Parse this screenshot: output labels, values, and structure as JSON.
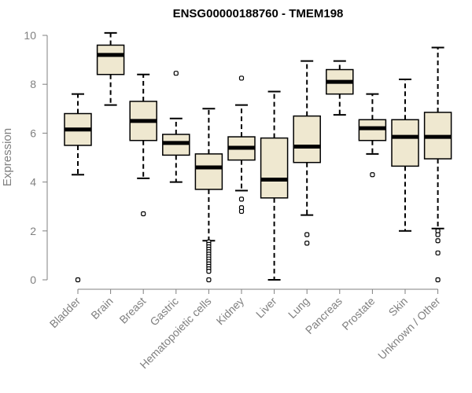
{
  "chart_data": {
    "type": "boxplot",
    "title": "ENSG00000188760 - TMEM198",
    "xlabel": "",
    "ylabel": "Expression",
    "ylim": [
      0,
      10
    ],
    "yticks": [
      0,
      2,
      4,
      6,
      8,
      10
    ],
    "box_fill": "#EFE8D0",
    "box_stroke": "#000000",
    "axis_color": "#808080",
    "categories": [
      "Bladder",
      "Brain",
      "Breast",
      "Gastric",
      "Hematopoietic cells",
      "Kidney",
      "Liver",
      "Lung",
      "Pancreas",
      "Prostate",
      "Skin",
      "Unknown / Other"
    ],
    "boxes": [
      {
        "min": 4.3,
        "q1": 5.5,
        "median": 6.15,
        "q3": 6.8,
        "max": 7.6,
        "outliers": [
          0
        ]
      },
      {
        "min": 7.15,
        "q1": 8.4,
        "median": 9.2,
        "q3": 9.6,
        "max": 10.1,
        "outliers": []
      },
      {
        "min": 4.15,
        "q1": 5.7,
        "median": 6.5,
        "q3": 7.3,
        "max": 8.4,
        "outliers": [
          2.7
        ]
      },
      {
        "min": 4.0,
        "q1": 5.1,
        "median": 5.6,
        "q3": 5.95,
        "max": 6.6,
        "outliers": [
          8.45
        ]
      },
      {
        "min": 1.6,
        "q1": 3.7,
        "median": 4.6,
        "q3": 5.15,
        "max": 7.0,
        "outliers": [
          1.55,
          1.45,
          1.35,
          1.25,
          1.15,
          1.05,
          0.95,
          0.85,
          0.75,
          0.65,
          0.55,
          0.45,
          0.35,
          0
        ]
      },
      {
        "min": 3.65,
        "q1": 4.9,
        "median": 5.4,
        "q3": 5.85,
        "max": 7.15,
        "outliers": [
          8.25,
          3.3,
          2.95,
          2.8
        ]
      },
      {
        "min": 0.0,
        "q1": 3.35,
        "median": 4.1,
        "q3": 5.8,
        "max": 7.7,
        "outliers": []
      },
      {
        "min": 2.65,
        "q1": 4.8,
        "median": 5.45,
        "q3": 6.7,
        "max": 8.95,
        "outliers": [
          1.85,
          1.5
        ]
      },
      {
        "min": 6.75,
        "q1": 7.6,
        "median": 8.1,
        "q3": 8.6,
        "max": 8.95,
        "outliers": []
      },
      {
        "min": 5.15,
        "q1": 5.7,
        "median": 6.2,
        "q3": 6.55,
        "max": 7.6,
        "outliers": [
          4.3
        ]
      },
      {
        "min": 2.0,
        "q1": 4.65,
        "median": 5.85,
        "q3": 6.55,
        "max": 8.2,
        "outliers": []
      },
      {
        "min": 2.1,
        "q1": 4.95,
        "median": 5.85,
        "q3": 6.85,
        "max": 9.5,
        "outliers": [
          2.0,
          1.85,
          1.6,
          1.1,
          0
        ]
      }
    ]
  }
}
